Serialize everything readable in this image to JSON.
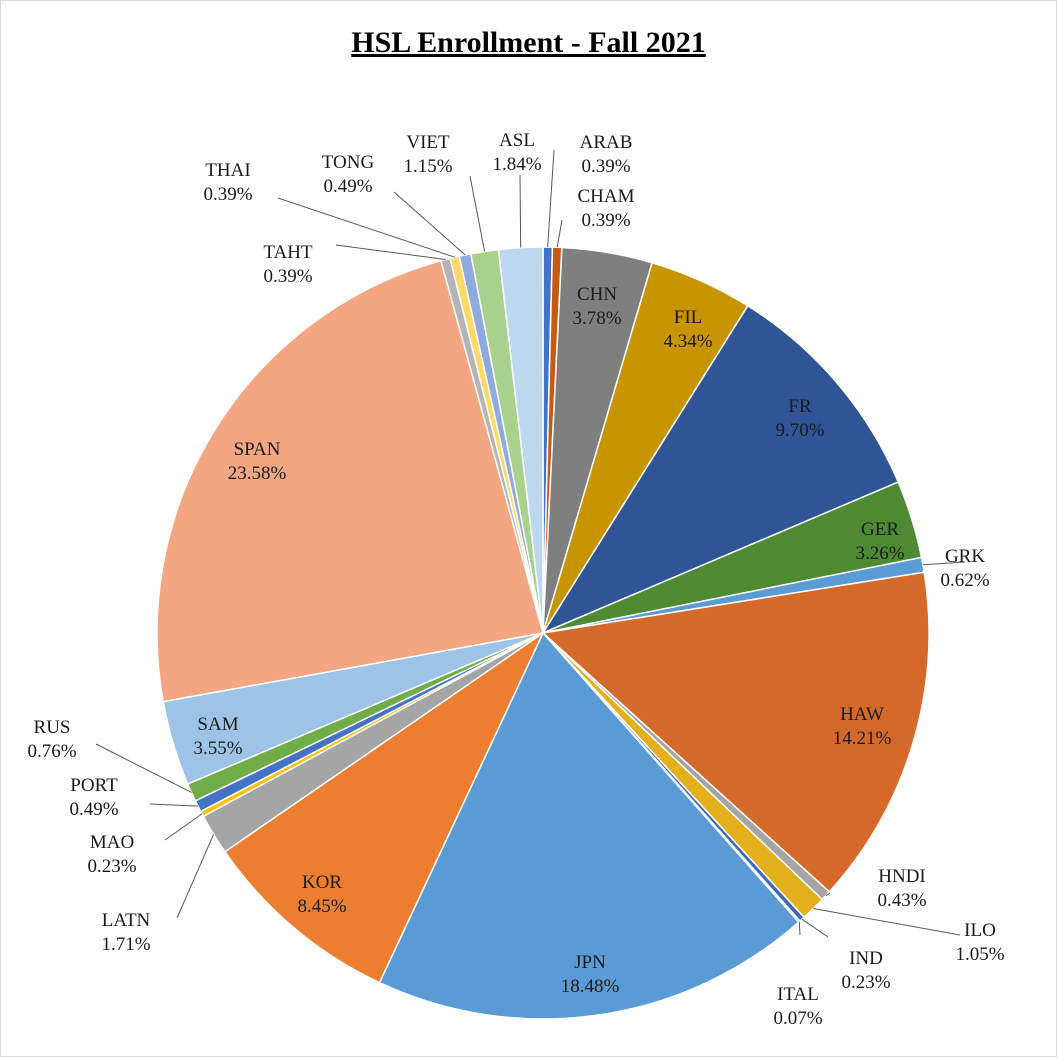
{
  "chart_data": {
    "type": "pie",
    "title": "HSL Enrollment - Fall 2021",
    "slices": [
      {
        "label": "ARAB",
        "value": 0.39,
        "pct": "0.39%",
        "color": "#4472c4"
      },
      {
        "label": "CHAM",
        "value": 0.39,
        "pct": "0.39%",
        "color": "#c55a11"
      },
      {
        "label": "CHN",
        "value": 3.78,
        "pct": "3.78%",
        "color": "#7f7f7f"
      },
      {
        "label": "FIL",
        "value": 4.34,
        "pct": "4.34%",
        "color": "#c79500"
      },
      {
        "label": "FR",
        "value": 9.7,
        "pct": "9.70%",
        "color": "#2f5597"
      },
      {
        "label": "GER",
        "value": 3.26,
        "pct": "3.26%",
        "color": "#4e8a34"
      },
      {
        "label": "GRK",
        "value": 0.62,
        "pct": "0.62%",
        "color": "#5b9bd5"
      },
      {
        "label": "HAW",
        "value": 14.21,
        "pct": "14.21%",
        "color": "#d4692a"
      },
      {
        "label": "HNDI",
        "value": 0.43,
        "pct": "0.43%",
        "color": "#a5a5a5"
      },
      {
        "label": "ILO",
        "value": 1.05,
        "pct": "1.05%",
        "color": "#e3b01c"
      },
      {
        "label": "IND",
        "value": 0.23,
        "pct": "0.23%",
        "color": "#3d6bb3"
      },
      {
        "label": "ITAL",
        "value": 0.07,
        "pct": "0.07%",
        "color": "#5a8f3a"
      },
      {
        "label": "JPN",
        "value": 18.48,
        "pct": "18.48%",
        "color": "#5b9bd5"
      },
      {
        "label": "KOR",
        "value": 8.45,
        "pct": "8.45%",
        "color": "#ed7d31"
      },
      {
        "label": "LATN",
        "value": 1.71,
        "pct": "1.71%",
        "color": "#a5a5a5"
      },
      {
        "label": "MAO",
        "value": 0.23,
        "pct": "0.23%",
        "color": "#ffc000"
      },
      {
        "label": "PORT",
        "value": 0.49,
        "pct": "0.49%",
        "color": "#4472c4"
      },
      {
        "label": "RUS",
        "value": 0.76,
        "pct": "0.76%",
        "color": "#70ad47"
      },
      {
        "label": "SAM",
        "value": 3.55,
        "pct": "3.55%",
        "color": "#9dc3e6"
      },
      {
        "label": "SPAN",
        "value": 23.58,
        "pct": "23.58%",
        "color": "#f4a582"
      },
      {
        "label": "TAHT",
        "value": 0.39,
        "pct": "0.39%",
        "color": "#b4b4b4"
      },
      {
        "label": "THAI",
        "value": 0.39,
        "pct": "0.39%",
        "color": "#ffd966"
      },
      {
        "label": "TONG",
        "value": 0.49,
        "pct": "0.49%",
        "color": "#8faadc"
      },
      {
        "label": "VIET",
        "value": 1.15,
        "pct": "1.15%",
        "color": "#a9d18e"
      },
      {
        "label": "ASL",
        "value": 1.84,
        "pct": "1.84%",
        "color": "#bdd7ee"
      }
    ]
  }
}
